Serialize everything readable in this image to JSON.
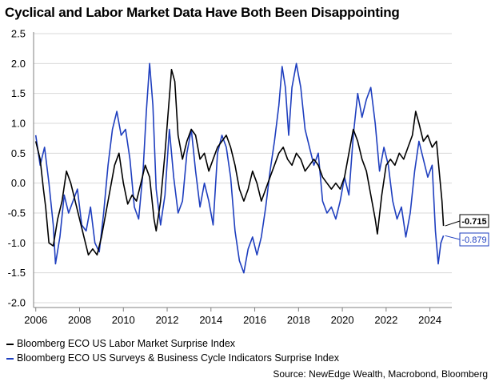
{
  "chart_data": {
    "type": "line",
    "title": "Cyclical and Labor Market Data Have Both Been Disappointing",
    "xlabel": "",
    "ylabel": "",
    "xlim": [
      2005.9,
      2025.0
    ],
    "ylim": [
      -2.0,
      2.5
    ],
    "y_ticks": [
      2.5,
      2.0,
      1.5,
      1.0,
      0.5,
      0.0,
      -0.5,
      -1.0,
      -1.5,
      -2.0
    ],
    "y_tick_labels": [
      "2.5",
      "2.0",
      "1.5",
      "1.0",
      "0.5",
      "0.0",
      "-0.5",
      "-1.0",
      "-1.5",
      "-2.0"
    ],
    "x_ticks": [
      2006,
      2008,
      2010,
      2012,
      2014,
      2016,
      2018,
      2020,
      2022,
      2024
    ],
    "x_tick_labels": [
      "2006",
      "2008",
      "2010",
      "2012",
      "2014",
      "2016",
      "2018",
      "2020",
      "2022",
      "2024"
    ],
    "grid": true,
    "series": [
      {
        "name": "Bloomberg ECO US Labor Market Surprise Index",
        "color": "#000000",
        "last_value_label": "-0.715",
        "points": [
          [
            2006.0,
            0.7
          ],
          [
            2006.2,
            0.4
          ],
          [
            2006.35,
            -0.1
          ],
          [
            2006.45,
            -0.4
          ],
          [
            2006.6,
            -1.0
          ],
          [
            2006.8,
            -1.05
          ],
          [
            2007.0,
            -0.6
          ],
          [
            2007.2,
            -0.3
          ],
          [
            2007.4,
            0.2
          ],
          [
            2007.6,
            0.0
          ],
          [
            2007.8,
            -0.3
          ],
          [
            2008.0,
            -0.6
          ],
          [
            2008.2,
            -0.9
          ],
          [
            2008.4,
            -1.2
          ],
          [
            2008.6,
            -1.1
          ],
          [
            2008.8,
            -1.2
          ],
          [
            2009.0,
            -0.9
          ],
          [
            2009.3,
            -0.3
          ],
          [
            2009.6,
            0.3
          ],
          [
            2009.8,
            0.5
          ],
          [
            2010.0,
            0.0
          ],
          [
            2010.2,
            -0.35
          ],
          [
            2010.4,
            -0.2
          ],
          [
            2010.6,
            -0.3
          ],
          [
            2010.8,
            0.0
          ],
          [
            2011.0,
            0.3
          ],
          [
            2011.2,
            0.1
          ],
          [
            2011.4,
            -0.6
          ],
          [
            2011.5,
            -0.8
          ],
          [
            2011.7,
            -0.3
          ],
          [
            2011.9,
            0.5
          ],
          [
            2012.05,
            1.2
          ],
          [
            2012.2,
            1.9
          ],
          [
            2012.35,
            1.7
          ],
          [
            2012.5,
            0.8
          ],
          [
            2012.7,
            0.4
          ],
          [
            2012.9,
            0.7
          ],
          [
            2013.1,
            0.9
          ],
          [
            2013.3,
            0.8
          ],
          [
            2013.5,
            0.4
          ],
          [
            2013.7,
            0.5
          ],
          [
            2013.9,
            0.2
          ],
          [
            2014.1,
            0.4
          ],
          [
            2014.3,
            0.6
          ],
          [
            2014.5,
            0.7
          ],
          [
            2014.7,
            0.8
          ],
          [
            2014.9,
            0.6
          ],
          [
            2015.1,
            0.3
          ],
          [
            2015.3,
            -0.1
          ],
          [
            2015.5,
            -0.3
          ],
          [
            2015.7,
            -0.1
          ],
          [
            2015.9,
            0.2
          ],
          [
            2016.1,
            0.0
          ],
          [
            2016.3,
            -0.3
          ],
          [
            2016.5,
            -0.1
          ],
          [
            2016.7,
            0.1
          ],
          [
            2016.9,
            0.3
          ],
          [
            2017.1,
            0.5
          ],
          [
            2017.3,
            0.6
          ],
          [
            2017.5,
            0.4
          ],
          [
            2017.7,
            0.3
          ],
          [
            2017.9,
            0.5
          ],
          [
            2018.1,
            0.4
          ],
          [
            2018.3,
            0.2
          ],
          [
            2018.5,
            0.3
          ],
          [
            2018.7,
            0.4
          ],
          [
            2018.9,
            0.3
          ],
          [
            2019.1,
            0.1
          ],
          [
            2019.3,
            0.0
          ],
          [
            2019.5,
            -0.1
          ],
          [
            2019.7,
            0.0
          ],
          [
            2019.9,
            -0.1
          ],
          [
            2020.1,
            0.1
          ],
          [
            2020.3,
            0.5
          ],
          [
            2020.5,
            0.9
          ],
          [
            2020.7,
            0.7
          ],
          [
            2020.9,
            0.4
          ],
          [
            2021.1,
            0.2
          ],
          [
            2021.3,
            -0.2
          ],
          [
            2021.5,
            -0.6
          ],
          [
            2021.6,
            -0.85
          ],
          [
            2021.8,
            -0.2
          ],
          [
            2022.0,
            0.3
          ],
          [
            2022.2,
            0.4
          ],
          [
            2022.4,
            0.3
          ],
          [
            2022.6,
            0.5
          ],
          [
            2022.8,
            0.4
          ],
          [
            2023.0,
            0.6
          ],
          [
            2023.2,
            0.8
          ],
          [
            2023.35,
            1.2
          ],
          [
            2023.5,
            1.0
          ],
          [
            2023.7,
            0.7
          ],
          [
            2023.9,
            0.8
          ],
          [
            2024.1,
            0.6
          ],
          [
            2024.3,
            0.7
          ],
          [
            2024.45,
            0.1
          ],
          [
            2024.55,
            -0.3
          ],
          [
            2024.62,
            -0.715
          ]
        ]
      },
      {
        "name": "Bloomberg ECO US Surveys & Business Cycle Indicators Surprise Index",
        "color": "#1f3fbf",
        "last_value_label": "-0.879",
        "points": [
          [
            2006.0,
            0.8
          ],
          [
            2006.2,
            0.3
          ],
          [
            2006.4,
            0.6
          ],
          [
            2006.6,
            0.0
          ],
          [
            2006.8,
            -0.7
          ],
          [
            2006.9,
            -1.35
          ],
          [
            2007.1,
            -0.9
          ],
          [
            2007.3,
            -0.2
          ],
          [
            2007.5,
            -0.5
          ],
          [
            2007.7,
            -0.3
          ],
          [
            2007.9,
            -0.1
          ],
          [
            2008.1,
            -0.7
          ],
          [
            2008.3,
            -0.8
          ],
          [
            2008.5,
            -0.4
          ],
          [
            2008.7,
            -1.0
          ],
          [
            2008.9,
            -1.15
          ],
          [
            2009.1,
            -0.5
          ],
          [
            2009.3,
            0.3
          ],
          [
            2009.5,
            0.9
          ],
          [
            2009.7,
            1.2
          ],
          [
            2009.9,
            0.8
          ],
          [
            2010.1,
            0.9
          ],
          [
            2010.3,
            0.4
          ],
          [
            2010.5,
            -0.4
          ],
          [
            2010.7,
            -0.6
          ],
          [
            2010.9,
            0.2
          ],
          [
            2011.05,
            1.2
          ],
          [
            2011.2,
            2.0
          ],
          [
            2011.35,
            1.3
          ],
          [
            2011.5,
            -0.1
          ],
          [
            2011.7,
            -0.7
          ],
          [
            2011.9,
            -0.2
          ],
          [
            2012.1,
            0.9
          ],
          [
            2012.3,
            0.1
          ],
          [
            2012.5,
            -0.5
          ],
          [
            2012.7,
            -0.3
          ],
          [
            2012.9,
            0.5
          ],
          [
            2013.1,
            0.9
          ],
          [
            2013.3,
            0.2
          ],
          [
            2013.5,
            -0.4
          ],
          [
            2013.7,
            0.0
          ],
          [
            2013.9,
            -0.3
          ],
          [
            2014.1,
            -0.7
          ],
          [
            2014.3,
            0.5
          ],
          [
            2014.5,
            0.8
          ],
          [
            2014.7,
            0.6
          ],
          [
            2014.9,
            0.1
          ],
          [
            2015.1,
            -0.8
          ],
          [
            2015.3,
            -1.3
          ],
          [
            2015.5,
            -1.5
          ],
          [
            2015.7,
            -1.1
          ],
          [
            2015.9,
            -0.9
          ],
          [
            2016.1,
            -1.2
          ],
          [
            2016.3,
            -0.9
          ],
          [
            2016.5,
            -0.4
          ],
          [
            2016.7,
            0.2
          ],
          [
            2016.9,
            0.7
          ],
          [
            2017.1,
            1.3
          ],
          [
            2017.25,
            1.95
          ],
          [
            2017.4,
            1.6
          ],
          [
            2017.55,
            0.8
          ],
          [
            2017.7,
            1.6
          ],
          [
            2017.9,
            2.0
          ],
          [
            2018.1,
            1.6
          ],
          [
            2018.3,
            0.9
          ],
          [
            2018.5,
            0.6
          ],
          [
            2018.7,
            0.3
          ],
          [
            2018.9,
            0.5
          ],
          [
            2019.1,
            -0.3
          ],
          [
            2019.3,
            -0.5
          ],
          [
            2019.5,
            -0.4
          ],
          [
            2019.7,
            -0.6
          ],
          [
            2019.9,
            -0.3
          ],
          [
            2020.1,
            0.1
          ],
          [
            2020.3,
            -0.2
          ],
          [
            2020.5,
            0.8
          ],
          [
            2020.7,
            1.5
          ],
          [
            2020.9,
            1.1
          ],
          [
            2021.1,
            1.4
          ],
          [
            2021.3,
            1.6
          ],
          [
            2021.5,
            1.0
          ],
          [
            2021.7,
            0.2
          ],
          [
            2021.9,
            0.6
          ],
          [
            2022.1,
            0.3
          ],
          [
            2022.3,
            -0.3
          ],
          [
            2022.5,
            -0.6
          ],
          [
            2022.7,
            -0.4
          ],
          [
            2022.9,
            -0.9
          ],
          [
            2023.1,
            -0.5
          ],
          [
            2023.3,
            0.2
          ],
          [
            2023.5,
            0.7
          ],
          [
            2023.7,
            0.4
          ],
          [
            2023.9,
            0.1
          ],
          [
            2024.1,
            0.3
          ],
          [
            2024.25,
            -0.8
          ],
          [
            2024.38,
            -1.35
          ],
          [
            2024.5,
            -1.0
          ],
          [
            2024.62,
            -0.879
          ]
        ]
      }
    ]
  },
  "legend": {
    "item1": "Bloomberg ECO US Labor Market Surprise Index",
    "item2": "Bloomberg ECO US Surveys & Business Cycle Indicators Surprise Index"
  },
  "source": "Source: NewEdge Wealth, Macrobond, Bloomberg",
  "colors": {
    "labor": "#000000",
    "surveys": "#1f3fbf",
    "grid": "#d9d9d9",
    "axis": "#808080"
  }
}
